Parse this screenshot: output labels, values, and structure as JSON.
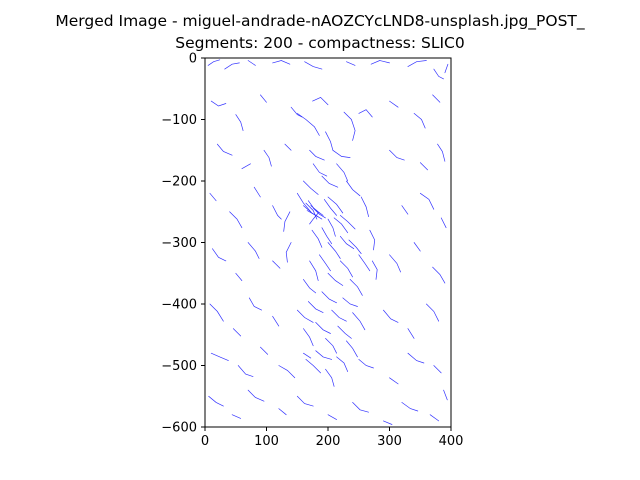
{
  "chart_data": {
    "type": "scatter",
    "title_lines": [
      "Merged Image - miguel-andrade-nAOZCYcLND8-unsplash.jpg_POST_",
      "Segments: 200 - compactness: SLIC0"
    ],
    "xlabel": "",
    "ylabel": "",
    "xlim": [
      0,
      400
    ],
    "ylim": [
      -600,
      0
    ],
    "x_ticks": [
      "0",
      "100",
      "200",
      "300",
      "400"
    ],
    "y_ticks": [
      "0",
      "−100",
      "−200",
      "−300",
      "−400",
      "−500",
      "−600"
    ],
    "x_tick_values": [
      0,
      100,
      200,
      300,
      400
    ],
    "y_tick_values": [
      0,
      -100,
      -200,
      -300,
      -400,
      -500,
      -600
    ],
    "grid": false,
    "legend": "none",
    "line_color": "#3333ff",
    "segments": [
      [
        [
          5,
          -12
        ],
        [
          14,
          -6
        ],
        [
          24,
          -3
        ]
      ],
      [
        [
          32,
          -18
        ],
        [
          44,
          -10
        ],
        [
          56,
          -8
        ]
      ],
      [
        [
          70,
          -4
        ],
        [
          82,
          -12
        ]
      ],
      [
        [
          110,
          -8
        ],
        [
          124,
          -4
        ],
        [
          138,
          -10
        ]
      ],
      [
        [
          162,
          -6
        ],
        [
          176,
          -14
        ],
        [
          190,
          -18
        ]
      ],
      [
        [
          230,
          -6
        ],
        [
          244,
          -12
        ]
      ],
      [
        [
          270,
          -10
        ],
        [
          284,
          -4
        ],
        [
          300,
          -8
        ]
      ],
      [
        [
          330,
          -14
        ],
        [
          344,
          -6
        ],
        [
          360,
          -4
        ]
      ],
      [
        [
          372,
          -18
        ],
        [
          380,
          -30
        ],
        [
          388,
          -34
        ]
      ],
      [
        [
          395,
          -10
        ],
        [
          390,
          -24
        ]
      ],
      [
        [
          10,
          -70
        ],
        [
          22,
          -78
        ],
        [
          34,
          -74
        ]
      ],
      [
        [
          50,
          -92
        ],
        [
          58,
          -104
        ],
        [
          62,
          -118
        ]
      ],
      [
        [
          90,
          -60
        ],
        [
          100,
          -72
        ]
      ],
      [
        [
          140,
          -80
        ],
        [
          150,
          -92
        ],
        [
          158,
          -96
        ]
      ],
      [
        [
          175,
          -70
        ],
        [
          188,
          -64
        ],
        [
          200,
          -76
        ]
      ],
      [
        [
          250,
          -90
        ],
        [
          262,
          -84
        ],
        [
          272,
          -96
        ]
      ],
      [
        [
          300,
          -70
        ],
        [
          314,
          -80
        ]
      ],
      [
        [
          340,
          -90
        ],
        [
          352,
          -100
        ],
        [
          358,
          -114
        ]
      ],
      [
        [
          370,
          -60
        ],
        [
          382,
          -72
        ]
      ],
      [
        [
          20,
          -140
        ],
        [
          30,
          -152
        ],
        [
          44,
          -158
        ]
      ],
      [
        [
          60,
          -180
        ],
        [
          74,
          -172
        ]
      ],
      [
        [
          96,
          -150
        ],
        [
          104,
          -162
        ],
        [
          108,
          -176
        ]
      ],
      [
        [
          130,
          -140
        ],
        [
          140,
          -150
        ]
      ],
      [
        [
          300,
          -150
        ],
        [
          312,
          -162
        ],
        [
          324,
          -166
        ]
      ],
      [
        [
          350,
          -170
        ],
        [
          362,
          -182
        ]
      ],
      [
        [
          378,
          -140
        ],
        [
          386,
          -152
        ],
        [
          390,
          -168
        ]
      ],
      [
        [
          8,
          -220
        ],
        [
          18,
          -232
        ]
      ],
      [
        [
          40,
          -250
        ],
        [
          52,
          -262
        ],
        [
          60,
          -276
        ]
      ],
      [
        [
          80,
          -210
        ],
        [
          90,
          -226
        ]
      ],
      [
        [
          110,
          -240
        ],
        [
          118,
          -256
        ],
        [
          124,
          -262
        ]
      ],
      [
        [
          320,
          -240
        ],
        [
          330,
          -254
        ]
      ],
      [
        [
          350,
          -220
        ],
        [
          364,
          -230
        ],
        [
          372,
          -246
        ]
      ],
      [
        [
          384,
          -260
        ],
        [
          392,
          -276
        ]
      ],
      [
        [
          12,
          -310
        ],
        [
          22,
          -324
        ],
        [
          34,
          -330
        ]
      ],
      [
        [
          50,
          -350
        ],
        [
          60,
          -362
        ]
      ],
      [
        [
          70,
          -300
        ],
        [
          82,
          -314
        ],
        [
          88,
          -326
        ]
      ],
      [
        [
          110,
          -330
        ],
        [
          122,
          -342
        ]
      ],
      [
        [
          300,
          -320
        ],
        [
          312,
          -334
        ],
        [
          318,
          -348
        ]
      ],
      [
        [
          340,
          -300
        ],
        [
          350,
          -314
        ]
      ],
      [
        [
          370,
          -340
        ],
        [
          382,
          -352
        ],
        [
          390,
          -366
        ]
      ],
      [
        [
          8,
          -400
        ],
        [
          20,
          -412
        ],
        [
          30,
          -428
        ]
      ],
      [
        [
          46,
          -440
        ],
        [
          58,
          -452
        ]
      ],
      [
        [
          72,
          -390
        ],
        [
          80,
          -404
        ],
        [
          92,
          -410
        ]
      ],
      [
        [
          110,
          -420
        ],
        [
          120,
          -436
        ]
      ],
      [
        [
          290,
          -410
        ],
        [
          302,
          -424
        ],
        [
          314,
          -430
        ]
      ],
      [
        [
          330,
          -440
        ],
        [
          340,
          -456
        ]
      ],
      [
        [
          360,
          -400
        ],
        [
          372,
          -412
        ],
        [
          380,
          -428
        ]
      ],
      [
        [
          10,
          -480
        ],
        [
          24,
          -486
        ],
        [
          38,
          -492
        ]
      ],
      [
        [
          54,
          -500
        ],
        [
          66,
          -514
        ],
        [
          78,
          -518
        ]
      ],
      [
        [
          90,
          -470
        ],
        [
          102,
          -482
        ]
      ],
      [
        [
          120,
          -500
        ],
        [
          134,
          -508
        ],
        [
          146,
          -520
        ]
      ],
      [
        [
          160,
          -480
        ],
        [
          172,
          -488
        ]
      ],
      [
        [
          250,
          -490
        ],
        [
          262,
          -500
        ],
        [
          274,
          -504
        ]
      ],
      [
        [
          300,
          -520
        ],
        [
          314,
          -530
        ]
      ],
      [
        [
          330,
          -480
        ],
        [
          344,
          -492
        ],
        [
          356,
          -496
        ]
      ],
      [
        [
          372,
          -500
        ],
        [
          384,
          -512
        ]
      ],
      [
        [
          6,
          -550
        ],
        [
          18,
          -560
        ],
        [
          30,
          -566
        ]
      ],
      [
        [
          44,
          -580
        ],
        [
          58,
          -586
        ]
      ],
      [
        [
          70,
          -540
        ],
        [
          82,
          -552
        ],
        [
          96,
          -558
        ]
      ],
      [
        [
          120,
          -570
        ],
        [
          132,
          -580
        ]
      ],
      [
        [
          150,
          -550
        ],
        [
          162,
          -562
        ],
        [
          176,
          -566
        ]
      ],
      [
        [
          200,
          -580
        ],
        [
          214,
          -588
        ]
      ],
      [
        [
          240,
          -560
        ],
        [
          252,
          -572
        ],
        [
          266,
          -576
        ]
      ],
      [
        [
          290,
          -590
        ],
        [
          304,
          -596
        ]
      ],
      [
        [
          320,
          -560
        ],
        [
          334,
          -570
        ],
        [
          346,
          -574
        ]
      ],
      [
        [
          366,
          -580
        ],
        [
          380,
          -590
        ]
      ],
      [
        [
          388,
          -540
        ],
        [
          394,
          -556
        ]
      ],
      [
        [
          150,
          -90
        ],
        [
          164,
          -100
        ],
        [
          178,
          -112
        ],
        [
          186,
          -126
        ]
      ],
      [
        [
          226,
          -88
        ],
        [
          238,
          -100
        ],
        [
          244,
          -118
        ],
        [
          240,
          -134
        ]
      ],
      [
        [
          196,
          -120
        ],
        [
          204,
          -136
        ],
        [
          208,
          -150
        ]
      ],
      [
        [
          170,
          -150
        ],
        [
          180,
          -160
        ],
        [
          194,
          -166
        ]
      ],
      [
        [
          208,
          -150
        ],
        [
          222,
          -160
        ],
        [
          236,
          -162
        ]
      ],
      [
        [
          176,
          -172
        ],
        [
          186,
          -186
        ],
        [
          198,
          -192
        ]
      ],
      [
        [
          214,
          -172
        ],
        [
          226,
          -186
        ],
        [
          232,
          -200
        ]
      ],
      [
        [
          190,
          -192
        ],
        [
          202,
          -204
        ],
        [
          216,
          -210
        ]
      ],
      [
        [
          160,
          -200
        ],
        [
          172,
          -212
        ],
        [
          184,
          -222
        ]
      ],
      [
        [
          230,
          -200
        ],
        [
          240,
          -214
        ],
        [
          252,
          -224
        ]
      ],
      [
        [
          150,
          -220
        ],
        [
          160,
          -236
        ],
        [
          172,
          -250
        ]
      ],
      [
        [
          254,
          -226
        ],
        [
          262,
          -242
        ],
        [
          266,
          -258
        ]
      ],
      [
        [
          160,
          -240
        ],
        [
          174,
          -252
        ],
        [
          184,
          -258
        ]
      ],
      [
        [
          164,
          -236
        ],
        [
          176,
          -248
        ],
        [
          182,
          -262
        ]
      ],
      [
        [
          168,
          -232
        ],
        [
          178,
          -246
        ],
        [
          186,
          -252
        ]
      ],
      [
        [
          172,
          -240
        ],
        [
          184,
          -250
        ],
        [
          192,
          -256
        ]
      ],
      [
        [
          176,
          -244
        ],
        [
          186,
          -254
        ],
        [
          196,
          -260
        ]
      ],
      [
        [
          166,
          -248
        ],
        [
          180,
          -256
        ],
        [
          190,
          -262
        ]
      ],
      [
        [
          184,
          -252
        ],
        [
          176,
          -262
        ],
        [
          170,
          -270
        ]
      ],
      [
        [
          194,
          -230
        ],
        [
          204,
          -244
        ],
        [
          214,
          -256
        ]
      ],
      [
        [
          200,
          -226
        ],
        [
          214,
          -238
        ],
        [
          224,
          -252
        ]
      ],
      [
        [
          210,
          -260
        ],
        [
          222,
          -270
        ],
        [
          232,
          -284
        ]
      ],
      [
        [
          220,
          -256
        ],
        [
          232,
          -266
        ],
        [
          244,
          -278
        ]
      ],
      [
        [
          200,
          -262
        ],
        [
          208,
          -276
        ],
        [
          212,
          -290
        ]
      ],
      [
        [
          190,
          -276
        ],
        [
          198,
          -290
        ],
        [
          206,
          -302
        ]
      ],
      [
        [
          174,
          -280
        ],
        [
          184,
          -294
        ],
        [
          190,
          -308
        ]
      ],
      [
        [
          220,
          -290
        ],
        [
          230,
          -302
        ],
        [
          242,
          -310
        ]
      ],
      [
        [
          234,
          -296
        ],
        [
          246,
          -308
        ],
        [
          254,
          -318
        ]
      ],
      [
        [
          200,
          -300
        ],
        [
          212,
          -314
        ],
        [
          220,
          -326
        ]
      ],
      [
        [
          186,
          -320
        ],
        [
          196,
          -334
        ],
        [
          204,
          -346
        ]
      ],
      [
        [
          220,
          -330
        ],
        [
          232,
          -342
        ],
        [
          240,
          -356
        ]
      ],
      [
        [
          250,
          -320
        ],
        [
          260,
          -334
        ],
        [
          268,
          -346
        ]
      ],
      [
        [
          170,
          -330
        ],
        [
          180,
          -346
        ],
        [
          184,
          -362
        ]
      ],
      [
        [
          200,
          -350
        ],
        [
          212,
          -362
        ],
        [
          224,
          -370
        ]
      ],
      [
        [
          236,
          -360
        ],
        [
          248,
          -372
        ],
        [
          256,
          -386
        ]
      ],
      [
        [
          160,
          -360
        ],
        [
          170,
          -374
        ],
        [
          180,
          -382
        ]
      ],
      [
        [
          190,
          -380
        ],
        [
          202,
          -392
        ],
        [
          214,
          -398
        ]
      ],
      [
        [
          224,
          -390
        ],
        [
          236,
          -400
        ],
        [
          248,
          -404
        ]
      ],
      [
        [
          168,
          -396
        ],
        [
          180,
          -408
        ],
        [
          192,
          -414
        ]
      ],
      [
        [
          150,
          -410
        ],
        [
          162,
          -422
        ],
        [
          176,
          -430
        ]
      ],
      [
        [
          206,
          -410
        ],
        [
          218,
          -422
        ],
        [
          230,
          -428
        ]
      ],
      [
        [
          240,
          -414
        ],
        [
          252,
          -428
        ],
        [
          260,
          -442
        ]
      ],
      [
        [
          180,
          -430
        ],
        [
          192,
          -442
        ],
        [
          204,
          -448
        ]
      ],
      [
        [
          216,
          -436
        ],
        [
          228,
          -448
        ],
        [
          238,
          -456
        ]
      ],
      [
        [
          160,
          -440
        ],
        [
          170,
          -454
        ],
        [
          176,
          -468
        ]
      ],
      [
        [
          196,
          -456
        ],
        [
          208,
          -468
        ],
        [
          214,
          -480
        ]
      ],
      [
        [
          230,
          -460
        ],
        [
          240,
          -472
        ],
        [
          248,
          -486
        ]
      ],
      [
        [
          180,
          -476
        ],
        [
          192,
          -486
        ],
        [
          206,
          -490
        ]
      ],
      [
        [
          214,
          -486
        ],
        [
          226,
          -496
        ],
        [
          232,
          -510
        ]
      ],
      [
        [
          164,
          -490
        ],
        [
          176,
          -500
        ],
        [
          188,
          -512
        ]
      ],
      [
        [
          196,
          -506
        ],
        [
          206,
          -520
        ],
        [
          210,
          -534
        ]
      ],
      [
        [
          138,
          -250
        ],
        [
          130,
          -266
        ],
        [
          128,
          -282
        ]
      ],
      [
        [
          140,
          -300
        ],
        [
          132,
          -316
        ],
        [
          134,
          -332
        ]
      ],
      [
        [
          268,
          -280
        ],
        [
          276,
          -296
        ],
        [
          274,
          -312
        ]
      ],
      [
        [
          272,
          -330
        ],
        [
          280,
          -344
        ],
        [
          278,
          -360
        ]
      ]
    ]
  }
}
